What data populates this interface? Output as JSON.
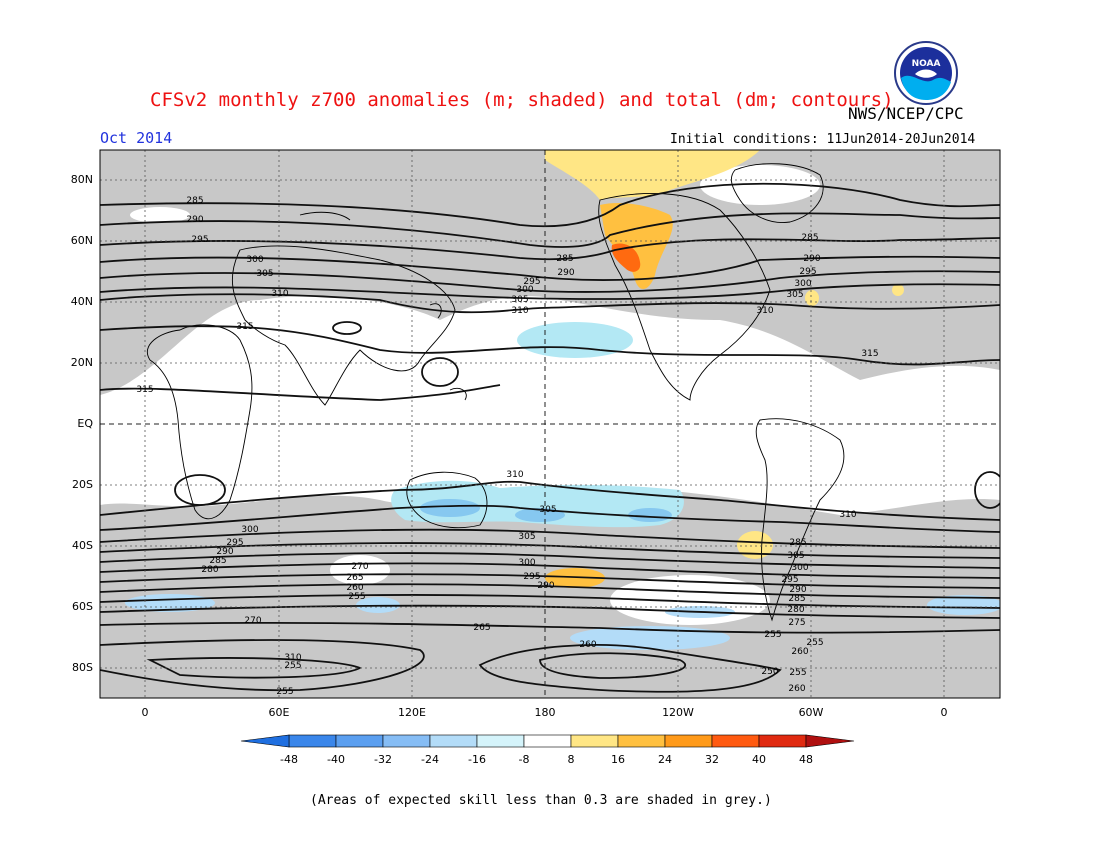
{
  "title": "CFSv2 monthly z700 anomalies (m; shaded) and total (dm; contours)",
  "credit": "NWS/NCEP/CPC",
  "month": "Oct 2014",
  "initial_conditions": "Initial conditions: 11Jun2014-20Jun2014",
  "footnote": "(Areas of expected skill less than 0.3 are shaded in grey.)",
  "logo_text": "NOAA",
  "lat_labels": [
    "80N",
    "60N",
    "40N",
    "20N",
    "EQ",
    "20S",
    "40S",
    "60S",
    "80S"
  ],
  "lon_labels": [
    "0",
    "60E",
    "120E",
    "180",
    "120W",
    "60W",
    "0"
  ],
  "colorbar": {
    "labels": [
      "-48",
      "-40",
      "-32",
      "-24",
      "-16",
      "-8",
      "8",
      "16",
      "24",
      "32",
      "40",
      "48"
    ],
    "colors": [
      "#1f6fe0",
      "#3a86ea",
      "#5b9ff0",
      "#86bdf5",
      "#b3dcf8",
      "#d5f4fb",
      "#ffffff",
      "#ffe685",
      "#ffc040",
      "#ff9a1a",
      "#ff5a10",
      "#e02a10",
      "#b01010"
    ]
  },
  "contour_labels": {
    "north": [
      {
        "text": "285"
      },
      {
        "text": "290"
      },
      {
        "text": "295"
      },
      {
        "text": "300"
      },
      {
        "text": "305"
      },
      {
        "text": "310"
      },
      {
        "text": "315"
      },
      {
        "text": "315"
      },
      {
        "text": "285"
      },
      {
        "text": "290"
      },
      {
        "text": "295"
      },
      {
        "text": "300"
      },
      {
        "text": "305"
      },
      {
        "text": "310"
      },
      {
        "text": "285"
      },
      {
        "text": "290"
      },
      {
        "text": "295"
      },
      {
        "text": "300"
      },
      {
        "text": "305"
      },
      {
        "text": "310"
      },
      {
        "text": "315"
      }
    ],
    "south": [
      {
        "text": "310"
      },
      {
        "text": "310"
      },
      {
        "text": "305"
      },
      {
        "text": "300"
      },
      {
        "text": "295"
      },
      {
        "text": "290"
      },
      {
        "text": "285"
      },
      {
        "text": "280"
      },
      {
        "text": "270"
      },
      {
        "text": "265"
      },
      {
        "text": "260"
      },
      {
        "text": "255"
      },
      {
        "text": "305"
      },
      {
        "text": "300"
      },
      {
        "text": "295"
      },
      {
        "text": "290"
      },
      {
        "text": "285"
      },
      {
        "text": "305"
      },
      {
        "text": "300"
      },
      {
        "text": "295"
      },
      {
        "text": "290"
      },
      {
        "text": "285"
      },
      {
        "text": "280"
      },
      {
        "text": "275"
      },
      {
        "text": "270"
      },
      {
        "text": "265"
      },
      {
        "text": "260"
      },
      {
        "text": "310"
      },
      {
        "text": "255"
      },
      {
        "text": "250"
      },
      {
        "text": "255"
      },
      {
        "text": "260"
      },
      {
        "text": "255"
      },
      {
        "text": "255"
      },
      {
        "text": "260"
      },
      {
        "text": "255"
      }
    ]
  }
}
